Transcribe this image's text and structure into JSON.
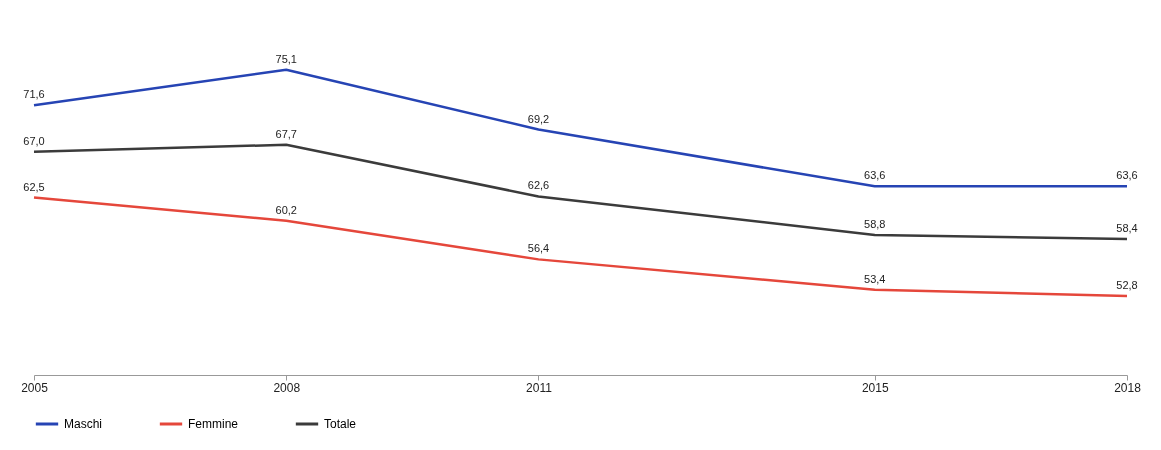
{
  "chart_data": {
    "type": "line",
    "x": [
      2005,
      2008,
      2011,
      2015,
      2018
    ],
    "xlim": [
      2005,
      2018
    ],
    "xticks": [
      2005,
      2008,
      2011,
      2015,
      2018
    ],
    "tick_labels": "x",
    "grid": false,
    "legend": "bottom",
    "marker": "none",
    "line_style": "solid",
    "series": [
      {
        "name": "Maschi",
        "color": "#2644b4",
        "values": [
          71.6,
          75.1,
          69.2,
          63.6,
          63.6
        ],
        "value_labels": [
          "71,6",
          "75,1",
          "69,2",
          "63,6",
          "63,6"
        ]
      },
      {
        "name": "Femmine",
        "color": "#e5473b",
        "values": [
          62.5,
          60.2,
          56.4,
          53.4,
          52.8
        ],
        "value_labels": [
          "62,5",
          "60,2",
          "56,4",
          "53,4",
          "52,8"
        ]
      },
      {
        "name": "Totale",
        "color": "#3b3b3b",
        "values": [
          67.0,
          67.7,
          62.6,
          58.8,
          58.4
        ],
        "value_labels": [
          "67,0",
          "67,7",
          "62,6",
          "58,8",
          "58,4"
        ]
      }
    ]
  }
}
